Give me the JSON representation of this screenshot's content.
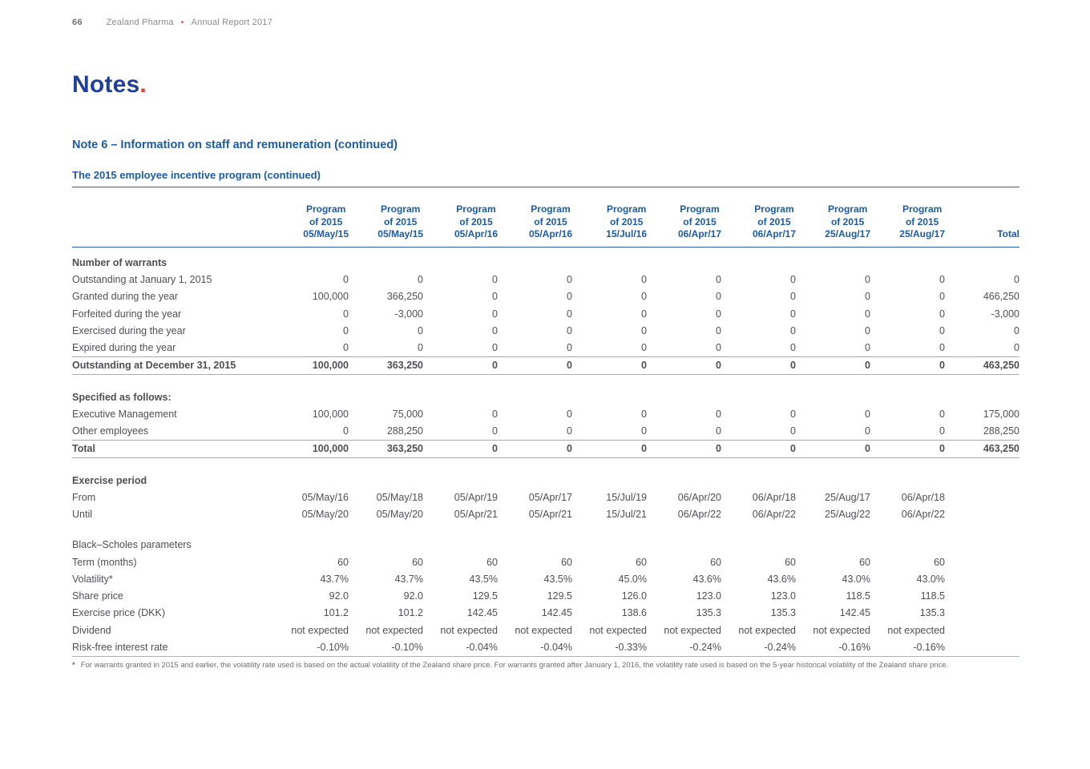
{
  "page_header": {
    "page_number": "66",
    "brand": "Zealand Pharma",
    "separator": "•",
    "report": "Annual Report 2017"
  },
  "title": {
    "text": "Notes",
    "dot": "."
  },
  "headings": {
    "note": "Note 6 – Information on staff and remuneration (continued)",
    "program": "The 2015 employee incentive program (continued)"
  },
  "colors": {
    "title_blue": "#21409a",
    "heading_blue": "#1c5ba8",
    "accent_red": "#e23d28",
    "body_text": "#4f5054",
    "rule_gray": "#a9abaf"
  },
  "table": {
    "program_columns": [
      "Program\nof 2015\n05/May/15",
      "Program\nof 2015\n05/May/15",
      "Program\nof 2015\n05/Apr/16",
      "Program\nof 2015\n05/Apr/16",
      "Program\nof 2015\n15/Jul/16",
      "Program\nof 2015\n06/Apr/17",
      "Program\nof 2015\n06/Apr/17",
      "Program\nof 2015\n25/Aug/17",
      "Program\nof 2015\n25/Aug/17"
    ],
    "total_column": "Total",
    "rows": [
      {
        "type": "heading",
        "label": "Number of warrants"
      },
      {
        "type": "data",
        "label": "Outstanding at January 1, 2015",
        "values": [
          "0",
          "0",
          "0",
          "0",
          "0",
          "0",
          "0",
          "0",
          "0",
          "0"
        ]
      },
      {
        "type": "data",
        "label": "Granted during the year",
        "values": [
          "100,000",
          "366,250",
          "0",
          "0",
          "0",
          "0",
          "0",
          "0",
          "0",
          "466,250"
        ]
      },
      {
        "type": "data",
        "label": "Forfeited during the year",
        "values": [
          "0",
          "-3,000",
          "0",
          "0",
          "0",
          "0",
          "0",
          "0",
          "0",
          "-3,000"
        ]
      },
      {
        "type": "data",
        "label": "Exercised during the year",
        "values": [
          "0",
          "0",
          "0",
          "0",
          "0",
          "0",
          "0",
          "0",
          "0",
          "0"
        ]
      },
      {
        "type": "data",
        "label": "Expired during the year",
        "values": [
          "0",
          "0",
          "0",
          "0",
          "0",
          "0",
          "0",
          "0",
          "0",
          "0"
        ]
      },
      {
        "type": "total",
        "label": "Outstanding at December 31, 2015",
        "values": [
          "100,000",
          "363,250",
          "0",
          "0",
          "0",
          "0",
          "0",
          "0",
          "0",
          "463,250"
        ]
      },
      {
        "type": "spacer"
      },
      {
        "type": "heading",
        "label": "Specified as follows:"
      },
      {
        "type": "data",
        "label": "Executive Management",
        "values": [
          "100,000",
          "75,000",
          "0",
          "0",
          "0",
          "0",
          "0",
          "0",
          "0",
          "175,000"
        ]
      },
      {
        "type": "data",
        "label": "Other employees",
        "values": [
          "0",
          "288,250",
          "0",
          "0",
          "0",
          "0",
          "0",
          "0",
          "0",
          "288,250"
        ]
      },
      {
        "type": "total",
        "label": "Total",
        "values": [
          "100,000",
          "363,250",
          "0",
          "0",
          "0",
          "0",
          "0",
          "0",
          "0",
          "463,250"
        ]
      },
      {
        "type": "spacer"
      },
      {
        "type": "heading",
        "label": "Exercise period"
      },
      {
        "type": "data",
        "label": "From",
        "values": [
          "05/May/16",
          "05/May/18",
          "05/Apr/19",
          "05/Apr/17",
          "15/Jul/19",
          "06/Apr/20",
          "06/Apr/18",
          "25/Aug/17",
          "06/Apr/18",
          ""
        ]
      },
      {
        "type": "data",
        "label": "Until",
        "values": [
          "05/May/20",
          "05/May/20",
          "05/Apr/21",
          "05/Apr/21",
          "15/Jul/21",
          "06/Apr/22",
          "06/Apr/22",
          "25/Aug/22",
          "06/Apr/22",
          ""
        ]
      },
      {
        "type": "spacer"
      },
      {
        "type": "label",
        "label": "Black–Scholes parameters"
      },
      {
        "type": "data",
        "label": "Term (months)",
        "values": [
          "60",
          "60",
          "60",
          "60",
          "60",
          "60",
          "60",
          "60",
          "60",
          ""
        ]
      },
      {
        "type": "data",
        "label": "Volatility*",
        "values": [
          "43.7%",
          "43.7%",
          "43.5%",
          "43.5%",
          "45.0%",
          "43.6%",
          "43.6%",
          "43.0%",
          "43.0%",
          ""
        ]
      },
      {
        "type": "data",
        "label": "Share price",
        "values": [
          "92.0",
          "92.0",
          "129.5",
          "129.5",
          "126.0",
          "123.0",
          "123.0",
          "118.5",
          "118.5",
          ""
        ]
      },
      {
        "type": "data",
        "label": "Exercise price (DKK)",
        "values": [
          "101.2",
          "101.2",
          "142.45",
          "142.45",
          "138.6",
          "135.3",
          "135.3",
          "142.45",
          "135.3",
          ""
        ]
      },
      {
        "type": "data",
        "label": "Dividend",
        "values": [
          "not expected",
          "not expected",
          "not expected",
          "not expected",
          "not expected",
          "not expected",
          "not expected",
          "not expected",
          "not expected",
          ""
        ]
      },
      {
        "type": "data",
        "rule_bottom": true,
        "label": "Risk-free interest rate",
        "values": [
          "-0.10%",
          "-0.10%",
          "-0.04%",
          "-0.04%",
          "-0.33%",
          "-0.24%",
          "-0.24%",
          "-0.16%",
          "-0.16%",
          ""
        ]
      }
    ]
  },
  "footnote": {
    "marker": "*",
    "text": "For warrants granted in 2015 and earlier, the volatility rate used is based on the actual volatility of the Zealand share price. For warrants granted after January 1, 2016, the volatility rate used is based on the 5-year historical volatility of the Zealand share price."
  }
}
